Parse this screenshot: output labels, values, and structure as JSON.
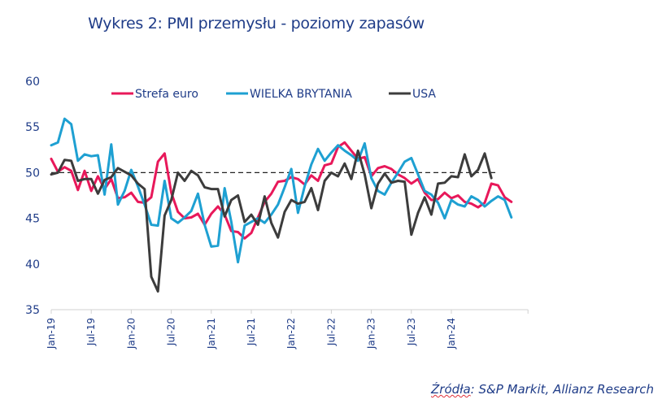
{
  "title": "Wykres 2: PMI przemysłu - poziomy zapasów",
  "source_prefix": "Źródła",
  "source_rest": ": S&P Markit, Allianz Research",
  "chart_data": {
    "type": "line",
    "title": "Wykres 2: PMI przemysłu - poziomy zapasów",
    "xlabel": "",
    "ylabel": "",
    "ylim": [
      35,
      60
    ],
    "yticks": [
      35,
      40,
      45,
      50,
      55,
      60
    ],
    "xtick_labels": [
      "Jan-19",
      "Jul-19",
      "Jan-20",
      "Jul-20",
      "Jan-21",
      "Jul-21",
      "Jan-22",
      "Jul-22",
      "Jan-23",
      "Jul-23",
      "Jan-24"
    ],
    "x_start": "2019-01",
    "n_months": 72,
    "reference_line": 50,
    "legend_position": "top",
    "series": [
      {
        "name": "Strefa euro",
        "color": "#e8185a",
        "values": [
          51.5,
          50.1,
          50.6,
          50.2,
          48.1,
          50.2,
          48.0,
          49.6,
          48.2,
          49.3,
          47.2,
          47.3,
          47.8,
          46.8,
          46.7,
          47.3,
          51.2,
          52.1,
          47.8,
          45.7,
          45.0,
          45.1,
          45.5,
          44.3,
          45.5,
          46.3,
          45.4,
          43.6,
          43.5,
          42.8,
          43.4,
          45.1,
          46.8,
          47.7,
          49.0,
          49.1,
          49.5,
          49.3,
          48.7,
          49.7,
          49.1,
          50.8,
          51.0,
          52.8,
          53.3,
          52.4,
          51.5,
          51.7,
          49.6,
          50.5,
          50.7,
          50.4,
          49.8,
          49.4,
          48.8,
          49.3,
          47.8,
          47.0,
          47.1,
          47.8,
          47.2,
          47.5,
          46.8,
          46.6,
          46.2,
          46.7,
          48.8,
          48.6,
          47.3,
          46.8
        ]
      },
      {
        "name": "WIELKA BRYTANIA",
        "color": "#1ea0d2",
        "values": [
          53.0,
          53.3,
          55.9,
          55.3,
          51.3,
          52.0,
          51.8,
          51.9,
          47.6,
          53.1,
          46.5,
          48.0,
          50.3,
          48.5,
          46.5,
          44.3,
          44.2,
          49.1,
          45.0,
          44.5,
          45.1,
          45.8,
          47.7,
          44.3,
          41.9,
          42.0,
          48.3,
          44.6,
          40.2,
          44.2,
          44.6,
          45.0,
          44.5,
          45.4,
          46.5,
          48.4,
          50.4,
          45.6,
          48.5,
          50.9,
          52.6,
          51.3,
          52.2,
          53.0,
          52.4,
          51.9,
          51.3,
          53.2,
          49.4,
          48.0,
          47.6,
          48.9,
          50.0,
          51.2,
          51.6,
          49.8,
          48.0,
          47.6,
          46.7,
          45.0,
          47.0,
          46.5,
          46.3,
          47.4,
          47.0,
          46.3,
          46.9,
          47.4,
          47.0,
          45.1
        ]
      },
      {
        "name": "USA",
        "color": "#3c3c3c",
        "values": [
          49.8,
          50.0,
          51.4,
          51.3,
          49.1,
          49.3,
          49.3,
          47.7,
          49.2,
          49.5,
          50.5,
          50.1,
          49.7,
          48.8,
          48.2,
          38.6,
          37.0,
          45.3,
          47.0,
          50.0,
          49.1,
          50.2,
          49.7,
          48.4,
          48.2,
          48.2,
          45.2,
          47.0,
          47.5,
          44.6,
          45.4,
          44.3,
          47.4,
          44.5,
          42.9,
          45.7,
          47.0,
          46.6,
          46.8,
          48.3,
          45.9,
          49.1,
          50.0,
          49.6,
          51.0,
          49.3,
          52.4,
          49.8,
          46.1,
          48.8,
          49.9,
          48.9,
          49.1,
          49.0,
          43.2,
          45.6,
          47.3,
          45.4,
          48.8,
          48.9,
          49.6,
          49.5,
          52.0,
          49.6,
          50.3,
          52.1,
          49.4
        ]
      }
    ]
  }
}
